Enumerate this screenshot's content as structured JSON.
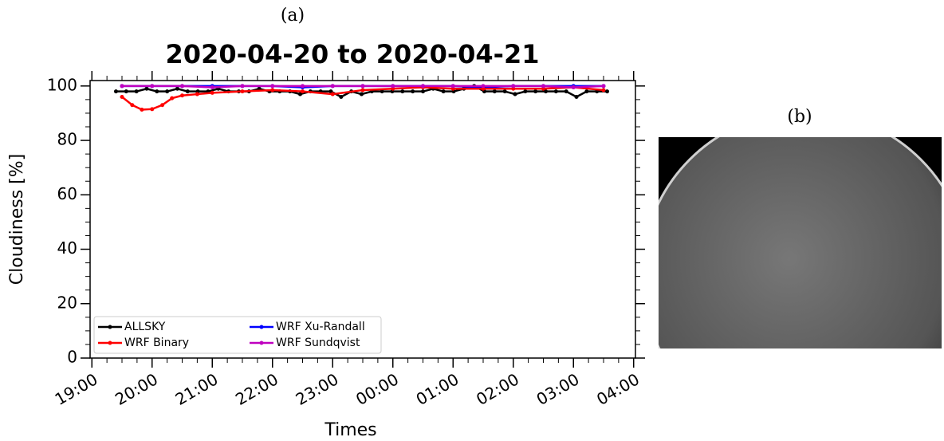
{
  "chart_data": {
    "type": "line",
    "panel_label": "(a)",
    "title": "2020-04-20 to 2020-04-21",
    "x_label": "Times",
    "y_label": "Cloudiness [%]",
    "xlim": [
      18.97,
      28.03
    ],
    "ylim": [
      0,
      102
    ],
    "xticks": [
      {
        "value": 19,
        "label": "19:00"
      },
      {
        "value": 20,
        "label": "20:00"
      },
      {
        "value": 21,
        "label": "21:00"
      },
      {
        "value": 22,
        "label": "22:00"
      },
      {
        "value": 23,
        "label": "23:00"
      },
      {
        "value": 24,
        "label": "00:00"
      },
      {
        "value": 25,
        "label": "01:00"
      },
      {
        "value": 26,
        "label": "02:00"
      },
      {
        "value": 27,
        "label": "03:00"
      },
      {
        "value": 28,
        "label": "04:00"
      }
    ],
    "yticks": [
      0,
      20,
      40,
      60,
      80,
      100
    ],
    "legend": "lower left",
    "series": [
      {
        "name": "ALLSKY",
        "color": "#000000",
        "x": [
          19.4,
          19.57,
          19.74,
          19.91,
          20.08,
          20.25,
          20.42,
          20.59,
          20.76,
          20.93,
          21.1,
          21.27,
          21.44,
          21.61,
          21.78,
          21.95,
          22.12,
          22.29,
          22.46,
          22.63,
          22.8,
          22.97,
          23.14,
          23.31,
          23.48,
          23.65,
          23.82,
          23.99,
          24.16,
          24.33,
          24.5,
          24.67,
          24.84,
          25.01,
          25.18,
          25.35,
          25.52,
          25.69,
          25.86,
          26.03,
          26.2,
          26.37,
          26.54,
          26.71,
          26.88,
          27.05,
          27.22,
          27.39,
          27.56
        ],
        "values": [
          98,
          98,
          98,
          99,
          98,
          98,
          99,
          98,
          98,
          98,
          99,
          98,
          98,
          98,
          99,
          98,
          98,
          98,
          97,
          98,
          98,
          98,
          96,
          98,
          97,
          98,
          98,
          98,
          98,
          98,
          98,
          99,
          98,
          98,
          99,
          100,
          98,
          98,
          98,
          97,
          98,
          98,
          98,
          98,
          98,
          96,
          98,
          98,
          98
        ]
      },
      {
        "name": "WRF Xu-Randall",
        "color": "#0000ff",
        "x": [
          19.5,
          20,
          20.5,
          21,
          21.5,
          22,
          22.5,
          23,
          23.5,
          24,
          24.5,
          25,
          25.5,
          26,
          26.5,
          27,
          27.5
        ],
        "values": [
          100,
          100,
          100,
          100,
          100,
          100,
          99.5,
          100,
          100,
          100,
          100,
          100,
          99.5,
          100,
          100,
          100,
          100
        ]
      },
      {
        "name": "WRF Binary",
        "color": "#ff0000",
        "x": [
          19.5,
          19.67,
          19.83,
          20,
          20.17,
          20.33,
          20.5,
          20.75,
          21,
          21.5,
          22,
          22.5,
          23,
          23.5,
          24,
          24.5,
          25,
          25.5,
          26,
          26.5,
          27,
          27.5
        ],
        "values": [
          96,
          93,
          91.3,
          91.5,
          93,
          95.5,
          96.5,
          97,
          97.5,
          98,
          98.5,
          98,
          97,
          98.5,
          99,
          99.5,
          99,
          99,
          99,
          99,
          99.5,
          98.5
        ]
      },
      {
        "name": "WRF Sundqvist",
        "color": "#bf00bf",
        "x": [
          19.5,
          20,
          20.5,
          21,
          21.5,
          22,
          22.5,
          23,
          23.5,
          24,
          24.5,
          25,
          25.5,
          26,
          26.5,
          27,
          27.5
        ],
        "values": [
          100,
          100,
          100,
          99.5,
          100,
          100,
          100,
          100,
          100,
          100,
          100,
          100,
          100,
          100,
          100,
          99.5,
          100
        ]
      }
    ]
  },
  "image_panel": {
    "label": "(b)"
  }
}
